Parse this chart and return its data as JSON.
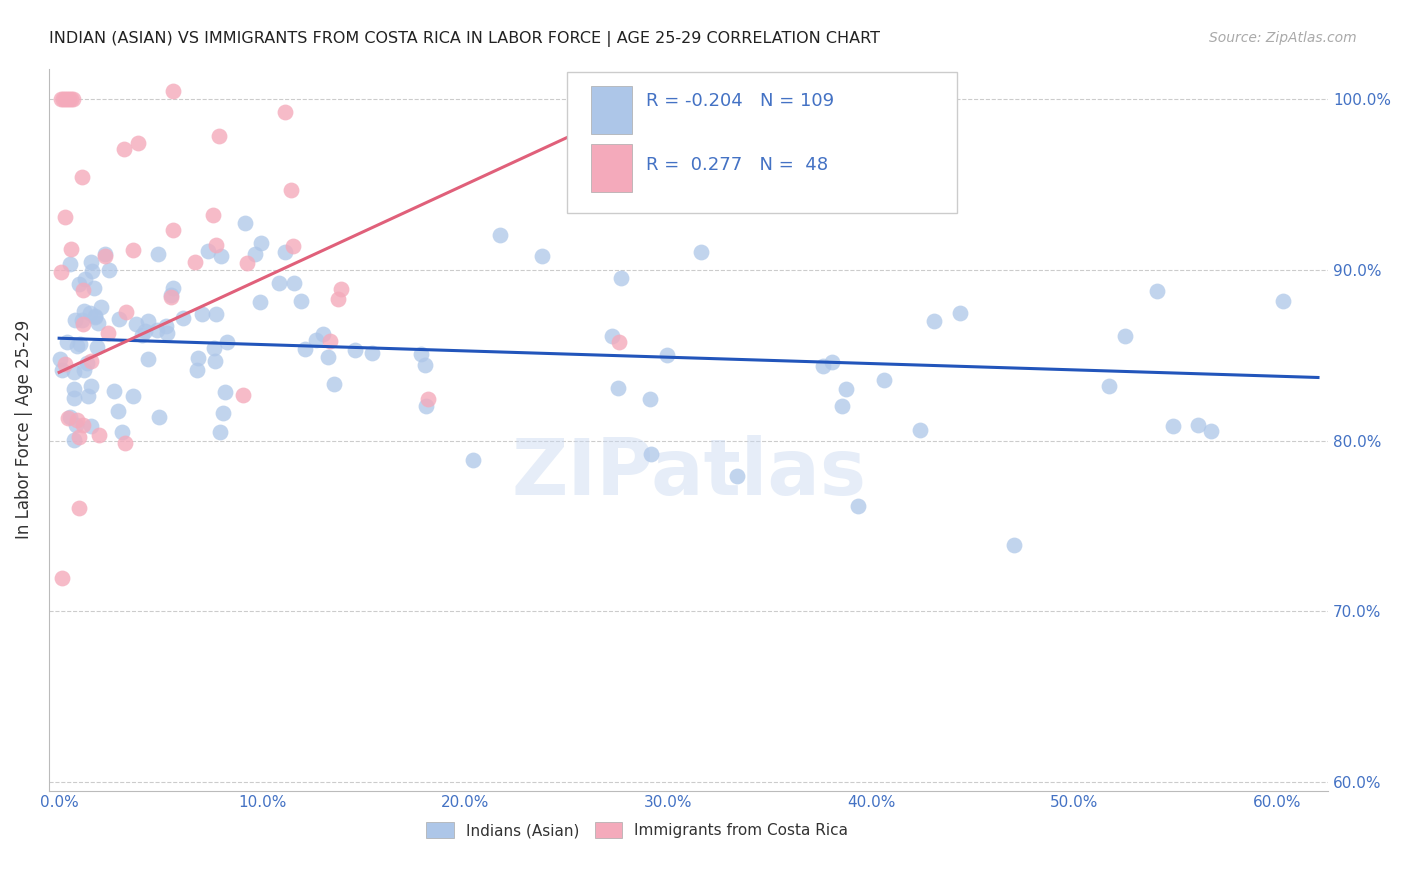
{
  "title": "INDIAN (ASIAN) VS IMMIGRANTS FROM COSTA RICA IN LABOR FORCE | AGE 25-29 CORRELATION CHART",
  "source": "Source: ZipAtlas.com",
  "ylabel": "In Labor Force | Age 25-29",
  "xlim": [
    -0.005,
    0.625
  ],
  "ylim": [
    0.595,
    1.018
  ],
  "yticks": [
    0.6,
    0.7,
    0.8,
    0.9,
    1.0
  ],
  "ytick_labels": [
    "60.0%",
    "70.0%",
    "80.0%",
    "90.0%",
    "100.0%"
  ],
  "xticks": [
    0.0,
    0.1,
    0.2,
    0.3,
    0.4,
    0.5,
    0.6
  ],
  "xtick_labels": [
    "0.0%",
    "10.0%",
    "20.0%",
    "30.0%",
    "40.0%",
    "50.0%",
    "60.0%"
  ],
  "legend_blue_label": "Indians (Asian)",
  "legend_pink_label": "Immigrants from Costa Rica",
  "R_blue": -0.204,
  "N_blue": 109,
  "R_pink": 0.277,
  "N_pink": 48,
  "blue_color": "#adc6e8",
  "blue_line_color": "#2255bb",
  "pink_color": "#f4aabb",
  "pink_line_color": "#e0607a",
  "axis_color": "#4472c4",
  "watermark": "ZIPatlas",
  "blue_seed": 1234,
  "pink_seed": 5678
}
